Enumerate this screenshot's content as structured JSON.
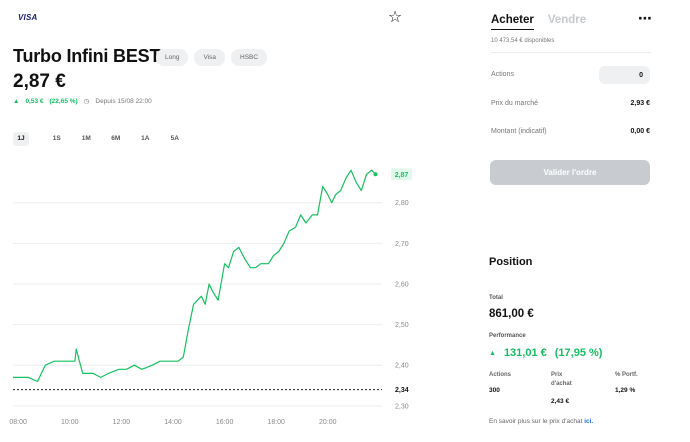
{
  "header": {
    "brand": "VISA",
    "favorite_icon": "star-outline-icon"
  },
  "product": {
    "title": "Turbo Infini BEST",
    "tags": [
      "Long",
      "Visa",
      "HSBC"
    ],
    "price": "2,87 €",
    "change_amount": "0,53 €",
    "change_percent": "(22,65 %)",
    "since": "Depuis 15/08 22:00"
  },
  "periods": [
    "1J",
    "1S",
    "1M",
    "6M",
    "1A",
    "5A"
  ],
  "active_period": "1J",
  "colors": {
    "accent": "#16c060",
    "disabled_button": "#c8ccd1",
    "link": "#1a73e8"
  },
  "chart_data": {
    "type": "line",
    "x_ticks": [
      "08:00",
      "10:00",
      "12:00",
      "14:00",
      "16:00",
      "18:00",
      "20:00"
    ],
    "y_ticks": [
      2.3,
      2.4,
      2.5,
      2.6,
      2.7,
      2.8
    ],
    "y_tick_labels": [
      "2,30",
      "2,40",
      "2,50",
      "2,60",
      "2,70",
      "2,80"
    ],
    "ylim": [
      2.28,
      2.91
    ],
    "xlim": [
      7.8,
      22.1
    ],
    "reference_value": 2.34,
    "reference_label": "2,34",
    "last_value": 2.87,
    "last_label": "2,87",
    "grid": true,
    "series": [
      {
        "x": [
          7.8,
          8.4,
          8.75,
          9.05,
          9.4,
          9.8,
          10.2,
          10.25,
          10.5,
          10.9,
          11.2,
          11.5,
          11.9,
          12.2,
          12.5,
          12.8,
          13.2,
          13.5,
          13.9,
          14.2,
          14.4,
          14.6,
          14.8,
          15.1,
          15.25,
          15.4,
          15.55,
          15.75,
          16.0,
          16.15,
          16.35,
          16.55,
          16.8,
          17.0,
          17.2,
          17.4,
          17.7,
          17.9,
          18.1,
          18.3,
          18.5,
          18.75,
          18.95,
          19.15,
          19.4,
          19.6,
          19.8,
          20.0,
          20.15,
          20.3,
          20.5,
          20.7,
          20.9,
          21.1,
          21.3,
          21.5,
          21.7,
          21.85
        ],
        "y": [
          2.37,
          2.37,
          2.36,
          2.4,
          2.41,
          2.41,
          2.41,
          2.44,
          2.38,
          2.38,
          2.37,
          2.38,
          2.39,
          2.39,
          2.4,
          2.39,
          2.4,
          2.41,
          2.41,
          2.41,
          2.42,
          2.49,
          2.55,
          2.57,
          2.55,
          2.6,
          2.58,
          2.56,
          2.65,
          2.64,
          2.68,
          2.69,
          2.66,
          2.64,
          2.64,
          2.65,
          2.65,
          2.67,
          2.68,
          2.7,
          2.73,
          2.74,
          2.77,
          2.75,
          2.77,
          2.77,
          2.84,
          2.82,
          2.8,
          2.82,
          2.83,
          2.86,
          2.88,
          2.85,
          2.83,
          2.87,
          2.88,
          2.87
        ]
      }
    ]
  },
  "order": {
    "tab_buy": "Acheter",
    "tab_sell": "Vendre",
    "more_icon": "more-horizontal-icon",
    "available": "10 473,54 € disponibles",
    "quantity_label": "Actions",
    "quantity_value": "0",
    "market_price_label": "Prix du marché",
    "market_price_value": "2,93 €",
    "amount_label": "Montant (indicatif)",
    "amount_value": "0,00 €",
    "submit_label": "Valider l'ordre"
  },
  "position": {
    "title": "Position",
    "total_label": "Total",
    "total_value": "861,00 €",
    "performance_label": "Performance",
    "performance_amount": "131,01 €",
    "performance_percent": "(17,95 %)",
    "shares_label": "Actions",
    "shares_value": "300",
    "buy_price_label_1": "Prix",
    "buy_price_label_2": "d'achat",
    "buy_price_value": "2,43 €",
    "portfolio_label": "% Portf.",
    "portfolio_value": "1,29 %",
    "info_text": "En savoir plus sur le prix d'achat",
    "info_link": "ici."
  }
}
